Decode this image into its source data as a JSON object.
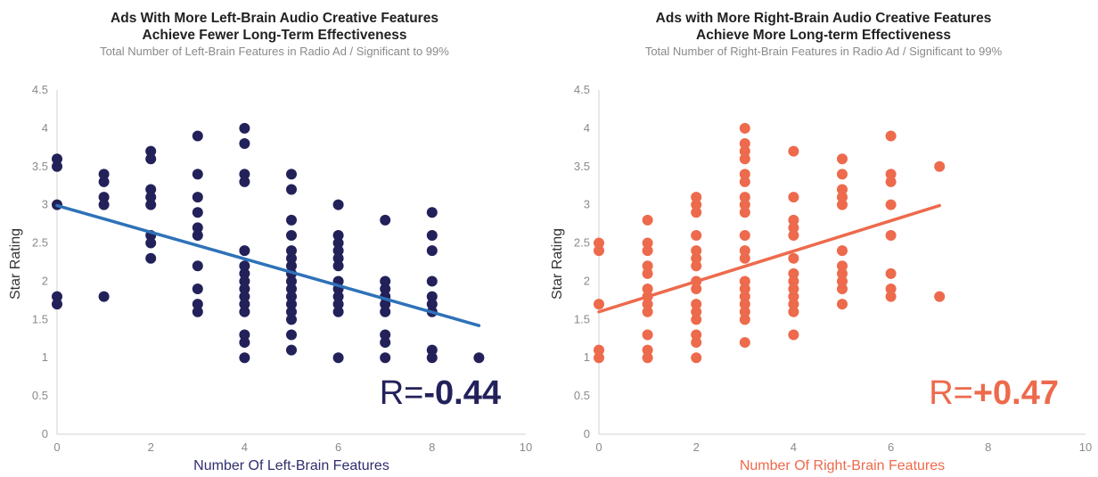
{
  "chart_data": [
    {
      "type": "scatter",
      "title": "Ads With More Left-Brain Audio Creative Features",
      "title_line2": "Achieve Fewer Long-Term Effectiveness",
      "subtitle": "Total Number of Left-Brain Features in Radio Ad / Significant to 99%",
      "xlabel": "Number Of Left-Brain Features",
      "ylabel": "Star Rating",
      "xlim": [
        0,
        10
      ],
      "ylim": [
        0,
        4.5
      ],
      "xticks": [
        "0",
        "2",
        "4",
        "6",
        "8",
        "10"
      ],
      "yticks": [
        "0",
        "0.5",
        "1",
        "1.5",
        "2",
        "2.5",
        "3",
        "3.5",
        "4",
        "4.5"
      ],
      "color": "#23215a",
      "trend_color": "#2e72b8",
      "xlabel_color": "#2f2d6e",
      "r_prefix": "R=",
      "r_value": "-0.44",
      "trendline": {
        "x": [
          0,
          9
        ],
        "y": [
          2.99,
          1.42
        ]
      },
      "points": [
        [
          0,
          3.6
        ],
        [
          0,
          3.5
        ],
        [
          0,
          3.0
        ],
        [
          0,
          1.8
        ],
        [
          0,
          1.7
        ],
        [
          1,
          3.4
        ],
        [
          1,
          3.3
        ],
        [
          1,
          3.1
        ],
        [
          1,
          3.0
        ],
        [
          1,
          1.8
        ],
        [
          2,
          3.7
        ],
        [
          2,
          3.6
        ],
        [
          2,
          3.2
        ],
        [
          2,
          3.1
        ],
        [
          2,
          3.0
        ],
        [
          2,
          2.6
        ],
        [
          2,
          2.5
        ],
        [
          2,
          2.3
        ],
        [
          3,
          3.9
        ],
        [
          3,
          3.4
        ],
        [
          3,
          3.1
        ],
        [
          3,
          2.9
        ],
        [
          3,
          2.7
        ],
        [
          3,
          2.6
        ],
        [
          3,
          2.2
        ],
        [
          3,
          1.9
        ],
        [
          3,
          1.7
        ],
        [
          3,
          1.6
        ],
        [
          4,
          4.0
        ],
        [
          4,
          3.8
        ],
        [
          4,
          3.4
        ],
        [
          4,
          3.3
        ],
        [
          4,
          2.4
        ],
        [
          4,
          2.2
        ],
        [
          4,
          2.1
        ],
        [
          4,
          2.0
        ],
        [
          4,
          1.9
        ],
        [
          4,
          1.8
        ],
        [
          4,
          1.7
        ],
        [
          4,
          1.6
        ],
        [
          4,
          1.3
        ],
        [
          4,
          1.2
        ],
        [
          4,
          1.0
        ],
        [
          5,
          3.4
        ],
        [
          5,
          3.2
        ],
        [
          5,
          2.8
        ],
        [
          5,
          2.6
        ],
        [
          5,
          2.4
        ],
        [
          5,
          2.3
        ],
        [
          5,
          2.2
        ],
        [
          5,
          2.1
        ],
        [
          5,
          2.0
        ],
        [
          5,
          1.9
        ],
        [
          5,
          1.8
        ],
        [
          5,
          1.7
        ],
        [
          5,
          1.6
        ],
        [
          5,
          1.5
        ],
        [
          5,
          1.3
        ],
        [
          5,
          1.1
        ],
        [
          6,
          3.0
        ],
        [
          6,
          2.6
        ],
        [
          6,
          2.5
        ],
        [
          6,
          2.4
        ],
        [
          6,
          2.3
        ],
        [
          6,
          2.2
        ],
        [
          6,
          2.0
        ],
        [
          6,
          1.9
        ],
        [
          6,
          1.8
        ],
        [
          6,
          1.7
        ],
        [
          6,
          1.6
        ],
        [
          6,
          1.0
        ],
        [
          7,
          2.8
        ],
        [
          7,
          2.0
        ],
        [
          7,
          1.9
        ],
        [
          7,
          1.8
        ],
        [
          7,
          1.7
        ],
        [
          7,
          1.6
        ],
        [
          7,
          1.3
        ],
        [
          7,
          1.2
        ],
        [
          7,
          1.0
        ],
        [
          8,
          2.9
        ],
        [
          8,
          2.6
        ],
        [
          8,
          2.4
        ],
        [
          8,
          2.0
        ],
        [
          8,
          1.8
        ],
        [
          8,
          1.7
        ],
        [
          8,
          1.6
        ],
        [
          8,
          1.1
        ],
        [
          8,
          1.0
        ],
        [
          9,
          1.0
        ]
      ]
    },
    {
      "type": "scatter",
      "title": "Ads with More Right-Brain Audio Creative Features",
      "title_line2": "Achieve More Long-term Effectiveness",
      "subtitle": "Total Number of Right-Brain Features in Radio Ad / Significant to 99%",
      "xlabel": "Number Of Right-Brain Features",
      "ylabel": "Star Rating",
      "xlim": [
        0,
        10
      ],
      "ylim": [
        0,
        4.5
      ],
      "xticks": [
        "0",
        "2",
        "4",
        "6",
        "8",
        "10"
      ],
      "yticks": [
        "0",
        "0.5",
        "1",
        "1.5",
        "2",
        "2.5",
        "3",
        "3.5",
        "4",
        "4.5"
      ],
      "color": "#ed6a4c",
      "trend_color": "#ed6a4c",
      "xlabel_color": "#ed6a4c",
      "r_prefix": "R=",
      "r_value": "+0.47",
      "trendline": {
        "x": [
          0,
          7
        ],
        "y": [
          1.6,
          2.99
        ]
      },
      "points": [
        [
          0,
          2.5
        ],
        [
          0,
          2.4
        ],
        [
          0,
          1.7
        ],
        [
          0,
          1.1
        ],
        [
          0,
          1.0
        ],
        [
          1,
          2.8
        ],
        [
          1,
          2.5
        ],
        [
          1,
          2.4
        ],
        [
          1,
          2.2
        ],
        [
          1,
          2.1
        ],
        [
          1,
          1.9
        ],
        [
          1,
          1.8
        ],
        [
          1,
          1.7
        ],
        [
          1,
          1.6
        ],
        [
          1,
          1.3
        ],
        [
          1,
          1.1
        ],
        [
          1,
          1.0
        ],
        [
          2,
          3.1
        ],
        [
          2,
          3.0
        ],
        [
          2,
          2.9
        ],
        [
          2,
          2.6
        ],
        [
          2,
          2.4
        ],
        [
          2,
          2.3
        ],
        [
          2,
          2.2
        ],
        [
          2,
          2.0
        ],
        [
          2,
          1.9
        ],
        [
          2,
          1.7
        ],
        [
          2,
          1.6
        ],
        [
          2,
          1.5
        ],
        [
          2,
          1.3
        ],
        [
          2,
          1.2
        ],
        [
          2,
          1.0
        ],
        [
          3,
          4.0
        ],
        [
          3,
          3.8
        ],
        [
          3,
          3.7
        ],
        [
          3,
          3.6
        ],
        [
          3,
          3.4
        ],
        [
          3,
          3.3
        ],
        [
          3,
          3.1
        ],
        [
          3,
          3.0
        ],
        [
          3,
          2.9
        ],
        [
          3,
          2.6
        ],
        [
          3,
          2.4
        ],
        [
          3,
          2.3
        ],
        [
          3,
          2.0
        ],
        [
          3,
          1.9
        ],
        [
          3,
          1.8
        ],
        [
          3,
          1.7
        ],
        [
          3,
          1.6
        ],
        [
          3,
          1.5
        ],
        [
          3,
          1.2
        ],
        [
          4,
          3.7
        ],
        [
          4,
          3.1
        ],
        [
          4,
          2.8
        ],
        [
          4,
          2.7
        ],
        [
          4,
          2.6
        ],
        [
          4,
          2.3
        ],
        [
          4,
          2.1
        ],
        [
          4,
          2.0
        ],
        [
          4,
          1.9
        ],
        [
          4,
          1.8
        ],
        [
          4,
          1.7
        ],
        [
          4,
          1.6
        ],
        [
          4,
          1.3
        ],
        [
          5,
          3.6
        ],
        [
          5,
          3.4
        ],
        [
          5,
          3.2
        ],
        [
          5,
          3.1
        ],
        [
          5,
          3.0
        ],
        [
          5,
          2.4
        ],
        [
          5,
          2.2
        ],
        [
          5,
          2.1
        ],
        [
          5,
          2.0
        ],
        [
          5,
          1.9
        ],
        [
          5,
          1.7
        ],
        [
          6,
          3.9
        ],
        [
          6,
          3.4
        ],
        [
          6,
          3.3
        ],
        [
          6,
          3.0
        ],
        [
          6,
          2.6
        ],
        [
          6,
          2.1
        ],
        [
          6,
          1.9
        ],
        [
          6,
          1.8
        ],
        [
          7,
          3.5
        ],
        [
          7,
          1.8
        ]
      ]
    }
  ]
}
